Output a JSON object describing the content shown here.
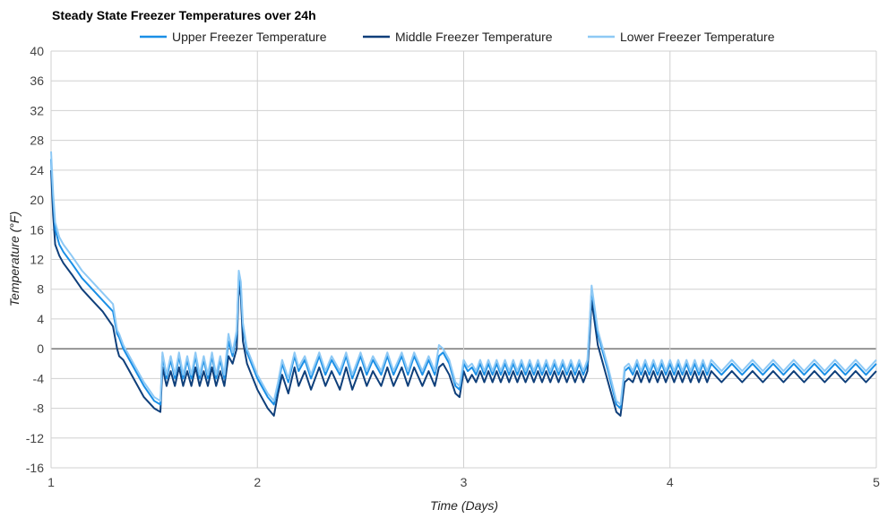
{
  "chart_data": {
    "type": "line",
    "title": "Steady State Freezer Temperatures over 24h",
    "xlabel": "Time (Days)",
    "ylabel": "Temperature (°F)",
    "xlim": [
      1,
      5
    ],
    "ylim": [
      -16,
      40
    ],
    "x_ticks": [
      "1",
      "2",
      "3",
      "4",
      "5"
    ],
    "y_ticks": [
      "40",
      "36",
      "32",
      "28",
      "24",
      "20",
      "16",
      "12",
      "8",
      "4",
      "0",
      "-4",
      "-8",
      "-12",
      "-16"
    ],
    "grid": true,
    "legend_position": "top",
    "series": [
      {
        "name": "Upper Freezer Temperature",
        "color": "#1a8fe6",
        "x": [
          1.0,
          1.01,
          1.02,
          1.04,
          1.06,
          1.1,
          1.15,
          1.2,
          1.25,
          1.3,
          1.32,
          1.33,
          1.35,
          1.4,
          1.45,
          1.5,
          1.53,
          1.54,
          1.56,
          1.58,
          1.6,
          1.62,
          1.64,
          1.66,
          1.68,
          1.7,
          1.72,
          1.74,
          1.76,
          1.78,
          1.8,
          1.82,
          1.84,
          1.86,
          1.88,
          1.9,
          1.91,
          1.92,
          1.93,
          1.95,
          2.0,
          2.05,
          2.08,
          2.1,
          2.12,
          2.15,
          2.18,
          2.2,
          2.23,
          2.26,
          2.3,
          2.33,
          2.36,
          2.4,
          2.43,
          2.46,
          2.5,
          2.53,
          2.56,
          2.6,
          2.63,
          2.66,
          2.7,
          2.73,
          2.76,
          2.8,
          2.83,
          2.86,
          2.88,
          2.9,
          2.93,
          2.96,
          2.98,
          3.0,
          3.02,
          3.04,
          3.06,
          3.08,
          3.1,
          3.12,
          3.14,
          3.16,
          3.18,
          3.2,
          3.22,
          3.24,
          3.26,
          3.28,
          3.3,
          3.32,
          3.34,
          3.36,
          3.38,
          3.4,
          3.42,
          3.44,
          3.46,
          3.48,
          3.5,
          3.52,
          3.54,
          3.56,
          3.58,
          3.6,
          3.61,
          3.62,
          3.63,
          3.65,
          3.7,
          3.74,
          3.76,
          3.78,
          3.8,
          3.82,
          3.84,
          3.86,
          3.88,
          3.9,
          3.92,
          3.94,
          3.96,
          3.98,
          4.0,
          4.02,
          4.04,
          4.06,
          4.08,
          4.1,
          4.12,
          4.14,
          4.16,
          4.18,
          4.2,
          4.25,
          4.3,
          4.35,
          4.4,
          4.45,
          4.5,
          4.55,
          4.6,
          4.65,
          4.7,
          4.75,
          4.8,
          4.85,
          4.9,
          4.95,
          5.0
        ],
        "values": [
          25.5,
          20,
          16,
          14,
          13,
          11.5,
          9.5,
          8,
          6.5,
          5,
          2,
          1.5,
          0,
          -2.5,
          -5,
          -7,
          -7.5,
          -1,
          -4,
          -1.5,
          -4,
          -1,
          -4,
          -1.5,
          -4,
          -1,
          -4,
          -1.5,
          -4,
          -1,
          -4,
          -1.5,
          -4,
          1,
          -1,
          2,
          10,
          8,
          3,
          -0.5,
          -4,
          -6.5,
          -7.5,
          -5,
          -2,
          -4.5,
          -1,
          -3,
          -1.5,
          -4,
          -1,
          -3.5,
          -1.5,
          -3.5,
          -1,
          -4,
          -1,
          -3.5,
          -1.5,
          -3.5,
          -1,
          -3.5,
          -1,
          -3.5,
          -1,
          -3.5,
          -1.5,
          -3.5,
          -1,
          -0.5,
          -2,
          -5,
          -5.5,
          -2,
          -3,
          -2.5,
          -3.5,
          -2,
          -3.5,
          -2,
          -3.5,
          -2,
          -3.5,
          -2,
          -3.5,
          -2,
          -3.5,
          -2,
          -3.5,
          -2,
          -3.5,
          -2,
          -3.5,
          -2,
          -3.5,
          -2,
          -3.5,
          -2,
          -3.5,
          -2,
          -3.5,
          -2,
          -3.5,
          -2,
          3,
          8,
          6,
          2,
          -3,
          -7.5,
          -8,
          -3,
          -2.5,
          -3.5,
          -2,
          -3.5,
          -2,
          -3.5,
          -2,
          -3.5,
          -2,
          -3.5,
          -2,
          -3.5,
          -2,
          -3.5,
          -2,
          -3.5,
          -2,
          -3.5,
          -2,
          -3.5,
          -2,
          -3.5,
          -2,
          -3.5,
          -2,
          -3.5,
          -2,
          -3.5,
          -2,
          -3.5,
          -2,
          -3.5,
          -2,
          -3.5,
          -2,
          -3.5,
          -2
        ]
      },
      {
        "name": "Middle Freezer Temperature",
        "color": "#0f3f7a",
        "x": [
          1.0,
          1.01,
          1.02,
          1.04,
          1.06,
          1.1,
          1.15,
          1.2,
          1.25,
          1.3,
          1.32,
          1.33,
          1.35,
          1.4,
          1.45,
          1.5,
          1.53,
          1.54,
          1.56,
          1.58,
          1.6,
          1.62,
          1.64,
          1.66,
          1.68,
          1.7,
          1.72,
          1.74,
          1.76,
          1.78,
          1.8,
          1.82,
          1.84,
          1.86,
          1.88,
          1.9,
          1.91,
          1.92,
          1.93,
          1.95,
          2.0,
          2.05,
          2.08,
          2.1,
          2.12,
          2.15,
          2.18,
          2.2,
          2.23,
          2.26,
          2.3,
          2.33,
          2.36,
          2.4,
          2.43,
          2.46,
          2.5,
          2.53,
          2.56,
          2.6,
          2.63,
          2.66,
          2.7,
          2.73,
          2.76,
          2.8,
          2.83,
          2.86,
          2.88,
          2.9,
          2.93,
          2.96,
          2.98,
          3.0,
          3.02,
          3.04,
          3.06,
          3.08,
          3.1,
          3.12,
          3.14,
          3.16,
          3.18,
          3.2,
          3.22,
          3.24,
          3.26,
          3.28,
          3.3,
          3.32,
          3.34,
          3.36,
          3.38,
          3.4,
          3.42,
          3.44,
          3.46,
          3.48,
          3.5,
          3.52,
          3.54,
          3.56,
          3.58,
          3.6,
          3.61,
          3.62,
          3.63,
          3.65,
          3.7,
          3.74,
          3.76,
          3.78,
          3.8,
          3.82,
          3.84,
          3.86,
          3.88,
          3.9,
          3.92,
          3.94,
          3.96,
          3.98,
          4.0,
          4.02,
          4.04,
          4.06,
          4.08,
          4.1,
          4.12,
          4.14,
          4.16,
          4.18,
          4.2,
          4.25,
          4.3,
          4.35,
          4.4,
          4.45,
          4.5,
          4.55,
          4.6,
          4.65,
          4.7,
          4.75,
          4.8,
          4.85,
          4.9,
          4.95,
          5.0
        ],
        "values": [
          24,
          18,
          14,
          12.5,
          11.5,
          10,
          8,
          6.5,
          5,
          3,
          0,
          -1,
          -1.5,
          -4,
          -6.5,
          -8,
          -8.5,
          -2.5,
          -5,
          -3,
          -5,
          -2.5,
          -5,
          -3,
          -5,
          -2.5,
          -5,
          -3,
          -5,
          -2.5,
          -5,
          -3,
          -5,
          -1,
          -2,
          0,
          8.5,
          7,
          1,
          -2,
          -5.5,
          -8,
          -9,
          -6,
          -3.5,
          -6,
          -2.5,
          -5,
          -3,
          -5.5,
          -2.5,
          -5,
          -3,
          -5.5,
          -2.5,
          -5.5,
          -2.5,
          -5,
          -3,
          -5,
          -2.5,
          -5,
          -2.5,
          -5,
          -2.5,
          -5,
          -3,
          -5,
          -2.5,
          -2,
          -3.5,
          -6,
          -6.5,
          -3,
          -4.5,
          -3.5,
          -4.5,
          -3,
          -4.5,
          -3,
          -4.5,
          -3,
          -4.5,
          -3,
          -4.5,
          -3,
          -4.5,
          -3,
          -4.5,
          -3,
          -4.5,
          -3,
          -4.5,
          -3,
          -4.5,
          -3,
          -4.5,
          -3,
          -4.5,
          -3,
          -4.5,
          -3,
          -4.5,
          -3,
          1.5,
          6.5,
          4.5,
          0.5,
          -4.5,
          -8.5,
          -9,
          -4.5,
          -4,
          -4.5,
          -3,
          -4.5,
          -3,
          -4.5,
          -3,
          -4.5,
          -3,
          -4.5,
          -3,
          -4.5,
          -3,
          -4.5,
          -3,
          -4.5,
          -3,
          -4.5,
          -3,
          -4.5,
          -3,
          -4.5,
          -3,
          -4.5,
          -3,
          -4.5,
          -3,
          -4.5,
          -3,
          -4.5,
          -3,
          -4.5,
          -3,
          -4.5,
          -3,
          -4.5,
          -3
        ]
      },
      {
        "name": "Lower Freezer Temperature",
        "color": "#8ec9f5",
        "x": [
          1.0,
          1.01,
          1.02,
          1.04,
          1.06,
          1.1,
          1.15,
          1.2,
          1.25,
          1.3,
          1.32,
          1.33,
          1.35,
          1.4,
          1.45,
          1.5,
          1.53,
          1.54,
          1.56,
          1.58,
          1.6,
          1.62,
          1.64,
          1.66,
          1.68,
          1.7,
          1.72,
          1.74,
          1.76,
          1.78,
          1.8,
          1.82,
          1.84,
          1.86,
          1.88,
          1.9,
          1.91,
          1.92,
          1.93,
          1.95,
          2.0,
          2.05,
          2.08,
          2.1,
          2.12,
          2.15,
          2.18,
          2.2,
          2.23,
          2.26,
          2.3,
          2.33,
          2.36,
          2.4,
          2.43,
          2.46,
          2.5,
          2.53,
          2.56,
          2.6,
          2.63,
          2.66,
          2.7,
          2.73,
          2.76,
          2.8,
          2.83,
          2.86,
          2.88,
          2.9,
          2.93,
          2.96,
          2.98,
          3.0,
          3.02,
          3.04,
          3.06,
          3.08,
          3.1,
          3.12,
          3.14,
          3.16,
          3.18,
          3.2,
          3.22,
          3.24,
          3.26,
          3.28,
          3.3,
          3.32,
          3.34,
          3.36,
          3.38,
          3.4,
          3.42,
          3.44,
          3.46,
          3.48,
          3.5,
          3.52,
          3.54,
          3.56,
          3.58,
          3.6,
          3.61,
          3.62,
          3.63,
          3.65,
          3.7,
          3.74,
          3.76,
          3.78,
          3.8,
          3.82,
          3.84,
          3.86,
          3.88,
          3.9,
          3.92,
          3.94,
          3.96,
          3.98,
          4.0,
          4.02,
          4.04,
          4.06,
          4.08,
          4.1,
          4.12,
          4.14,
          4.16,
          4.18,
          4.2,
          4.25,
          4.3,
          4.35,
          4.4,
          4.45,
          4.5,
          4.55,
          4.6,
          4.65,
          4.7,
          4.75,
          4.8,
          4.85,
          4.9,
          4.95,
          5.0
        ],
        "values": [
          26.5,
          21,
          17,
          15,
          14,
          12.5,
          10.5,
          9,
          7.5,
          6,
          2.5,
          2,
          0.5,
          -2,
          -4.5,
          -6.5,
          -7,
          -0.5,
          -3.5,
          -1,
          -3.5,
          -0.5,
          -3.5,
          -1,
          -3.5,
          -0.5,
          -3.5,
          -1,
          -3.5,
          -0.5,
          -3.5,
          -1,
          -3.5,
          2,
          -0.5,
          2.5,
          10.5,
          9,
          3.5,
          0,
          -3.5,
          -6,
          -7,
          -4.5,
          -1.5,
          -4,
          -0.5,
          -2.5,
          -1,
          -3.5,
          -0.5,
          -3,
          -1,
          -3,
          -0.5,
          -3.5,
          -0.5,
          -3,
          -1,
          -3,
          -0.5,
          -3,
          -0.5,
          -3,
          -0.5,
          -3,
          -1,
          -3,
          0.5,
          0,
          -1.5,
          -4.5,
          -5,
          -1.5,
          -2.5,
          -2,
          -3,
          -1.5,
          -3,
          -1.5,
          -3,
          -1.5,
          -3,
          -1.5,
          -3,
          -1.5,
          -3,
          -1.5,
          -3,
          -1.5,
          -3,
          -1.5,
          -3,
          -1.5,
          -3,
          -1.5,
          -3,
          -1.5,
          -3,
          -1.5,
          -3,
          -1.5,
          -3,
          -1.5,
          3.5,
          8.5,
          6.5,
          2.5,
          -2.5,
          -7,
          -7.5,
          -2.5,
          -2,
          -3,
          -1.5,
          -3,
          -1.5,
          -3,
          -1.5,
          -3,
          -1.5,
          -3,
          -1.5,
          -3,
          -1.5,
          -3,
          -1.5,
          -3,
          -1.5,
          -3,
          -1.5,
          -3,
          -1.5,
          -3,
          -1.5,
          -3,
          -1.5,
          -3,
          -1.5,
          -3,
          -1.5,
          -3,
          -1.5,
          -3,
          -1.5,
          -3,
          -1.5,
          -3,
          -1.5
        ]
      }
    ]
  }
}
